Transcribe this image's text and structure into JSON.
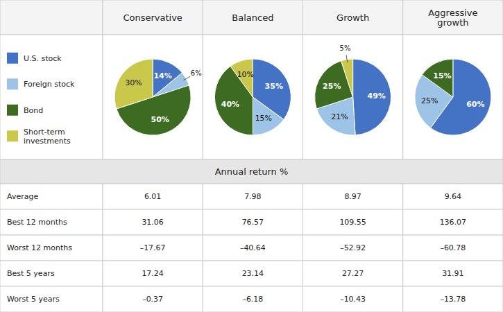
{
  "chart_data": [
    {
      "type": "pie",
      "title": "Conservative",
      "categories": [
        "U.S. stock",
        "Foreign stock",
        "Bond",
        "Short-term\ninvestments"
      ],
      "values": [
        14,
        6,
        50,
        30
      ],
      "value_labels": [
        "14%",
        "6%",
        "50%",
        "30%"
      ],
      "colors": [
        "#4472C4",
        "#9DC3E6",
        "#3D6B22",
        "#C9C84A"
      ],
      "data_labels": true
    },
    {
      "type": "pie",
      "title": "Balanced",
      "categories": [
        "U.S. stock",
        "Foreign stock",
        "Bond",
        "Short-term\ninvestments"
      ],
      "values": [
        35,
        15,
        40,
        10
      ],
      "value_labels": [
        "35%",
        "15%",
        "40%",
        "10%"
      ],
      "colors": [
        "#4472C4",
        "#9DC3E6",
        "#3D6B22",
        "#C9C84A"
      ],
      "data_labels": true
    },
    {
      "type": "pie",
      "title": "Growth",
      "categories": [
        "U.S. stock",
        "Foreign stock",
        "Bond",
        "Short-term\ninvestments"
      ],
      "values": [
        49,
        21,
        25,
        5
      ],
      "value_labels": [
        "49%",
        "21%",
        "25%",
        "5%"
      ],
      "colors": [
        "#4472C4",
        "#9DC3E6",
        "#3D6B22",
        "#C9C84A"
      ],
      "data_labels": true
    },
    {
      "type": "pie",
      "title": "Aggressive\ngrowth",
      "categories": [
        "U.S. stock",
        "Foreign stock",
        "Bond"
      ],
      "values": [
        60,
        25,
        15
      ],
      "value_labels": [
        "60%",
        "25%",
        "15%"
      ],
      "colors": [
        "#4472C4",
        "#9DC3E6",
        "#3D6B22"
      ],
      "data_labels": true
    },
    {
      "type": "table",
      "title": "Annual return %",
      "categories": [
        "Average",
        "Best 12 months",
        "Worst 12 months",
        "Best 5 years",
        "Worst 5 years"
      ],
      "data_labels": true,
      "series": [
        {
          "values": [
            6.01,
            31.06,
            -17.67,
            17.24,
            -0.37
          ],
          "value_labels": [
            "6.01",
            "31.06",
            "–17.67",
            "17.24",
            "–0.37"
          ]
        },
        {
          "values": [
            7.98,
            76.57,
            -40.64,
            23.14,
            -6.18
          ],
          "value_labels": [
            "7.98",
            "76.57",
            "–40.64",
            "23.14",
            "–6.18"
          ]
        },
        {
          "values": [
            8.97,
            109.55,
            -52.92,
            27.27,
            -10.43
          ],
          "value_labels": [
            "8.97",
            "109.55",
            "–52.92",
            "27.27",
            "–10.43"
          ]
        },
        {
          "values": [
            9.64,
            136.07,
            -60.78,
            31.91,
            -13.78
          ],
          "value_labels": [
            "9.64",
            "136.07",
            "–60.78",
            "31.91",
            "–13.78"
          ]
        }
      ]
    }
  ]
}
